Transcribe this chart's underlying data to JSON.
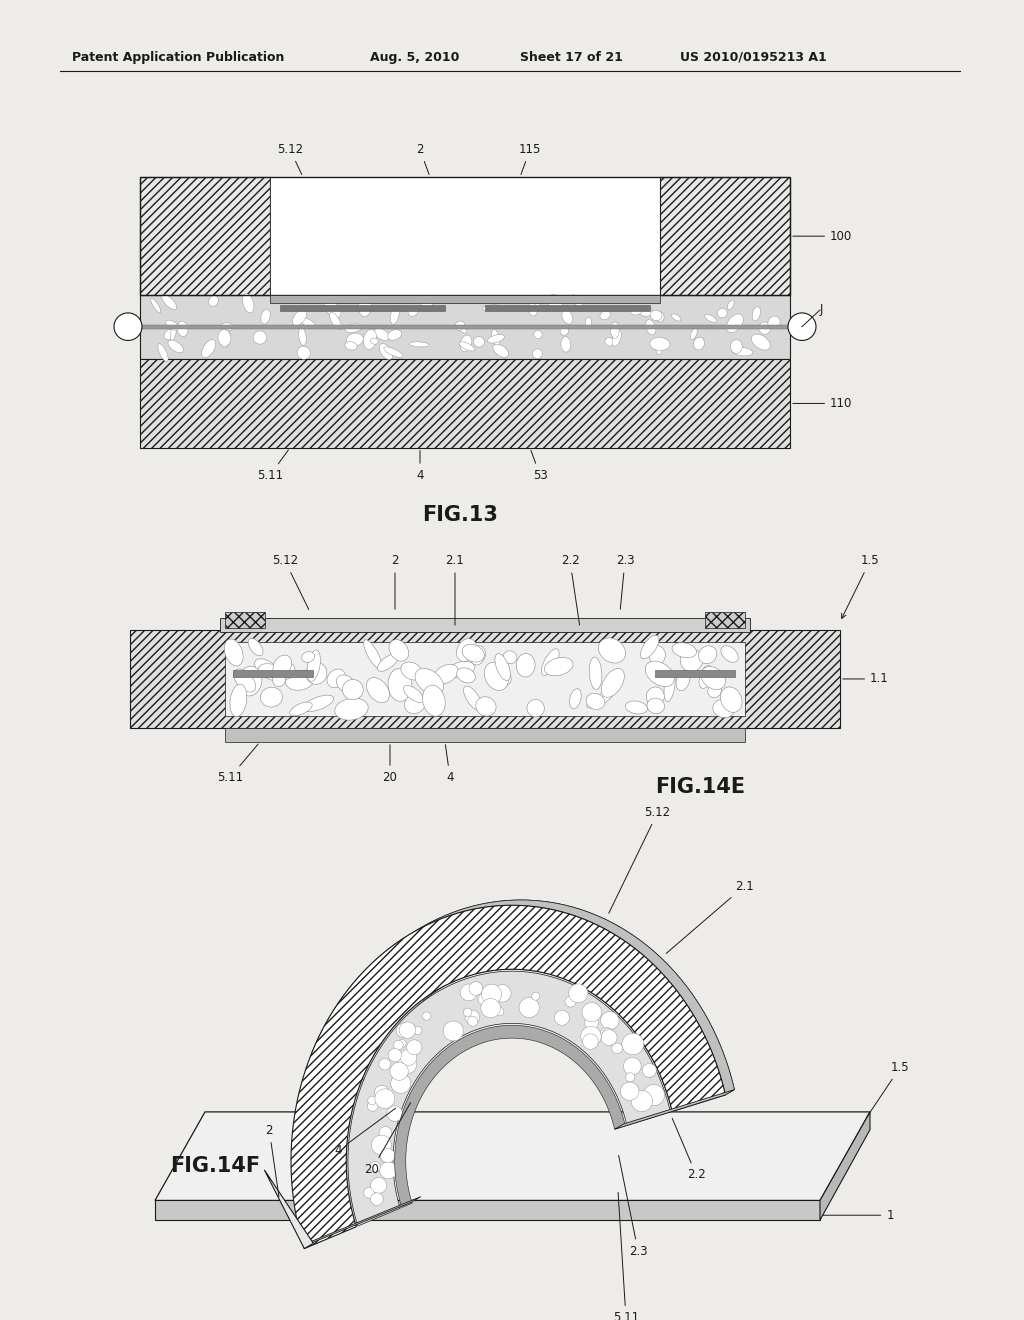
{
  "page_bg": "#eeece8",
  "line_color": "#1a1a1a",
  "header_text": "Patent Application Publication",
  "header_date": "Aug. 5, 2010",
  "header_sheet": "Sheet 17 of 21",
  "header_patent": "US 2010/0195213 A1",
  "fig13_label": "FIG.13",
  "fig14e_label": "FIG.14E",
  "fig14f_label": "FIG.14F"
}
